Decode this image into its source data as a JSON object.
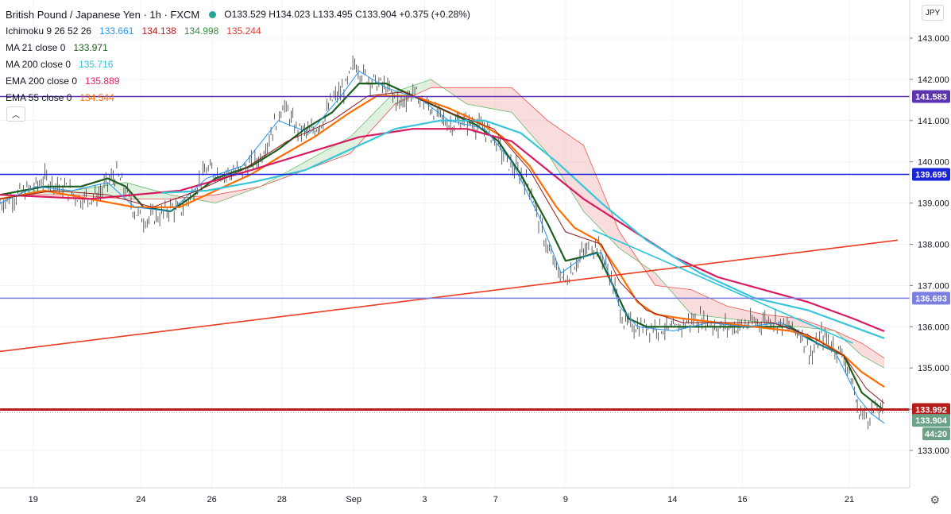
{
  "legend": {
    "symbol": "British Pound / Japanese Yen · 1h · FXCM",
    "ohlc": "O133.529 H134.023 L133.495 C133.904 +0.375 (+0.28%)",
    "rows": [
      {
        "name": "Ichimoku 9 26 52 26",
        "values": [
          {
            "v": "133.661",
            "color": "#2196f3"
          },
          {
            "v": "134.138",
            "color": "#b71c1c"
          },
          {
            "v": "134.998",
            "color": "#388e3c"
          },
          {
            "v": "135.244",
            "color": "#e53935"
          }
        ]
      },
      {
        "name": "MA 21 close 0",
        "values": [
          {
            "v": "133.971",
            "color": "#1b5e20"
          }
        ]
      },
      {
        "name": "MA 200 close 0",
        "values": [
          {
            "v": "135.716",
            "color": "#26c6da"
          }
        ]
      },
      {
        "name": "EMA 200 close 0",
        "values": [
          {
            "v": "135.889",
            "color": "#e91e63"
          }
        ]
      },
      {
        "name": "EMA 55 close 0",
        "values": [
          {
            "v": "134.544",
            "color": "#ff6d00"
          }
        ]
      }
    ]
  },
  "currency_label": "JPY",
  "collapse_icon": "chevron-up-icon",
  "settings_icon": "gear-icon",
  "colors": {
    "price_line_marker": "#7e57c2",
    "support_blue": "#1a23d6",
    "level_light_blue": "#7b7fe0",
    "trend_red": "#ef3b24",
    "current_red": "#b71c1c",
    "current_price_green": "#6aa187",
    "countdown_green": "#6aa187",
    "ma21": "#1b5e20",
    "ma200": "#39c5d9",
    "ema200": "#d81b60",
    "ema55": "#ff6d00",
    "tenkan": "#2196f3",
    "kijun": "#8d1b1b",
    "cloud_bull": "#a5d6a7",
    "cloud_bear": "#ef9a9a",
    "trendline_cyan": "#26c6da"
  },
  "chart_data": {
    "type": "line",
    "title": "British Pound / Japanese Yen · 1h · FXCM",
    "ylim": [
      132.4,
      143.4
    ],
    "y_ticks": [
      "143.000",
      "142.000",
      "141.000",
      "140.000",
      "139.000",
      "138.000",
      "137.000",
      "136.000",
      "135.000",
      "134.000",
      "133.000"
    ],
    "x_ticks": [
      "19",
      "24",
      "26",
      "28",
      "Sep",
      "3",
      "7",
      "9",
      "14",
      "16",
      "21"
    ],
    "horizontal_levels": [
      {
        "label": "141.583",
        "value": 141.583,
        "color": "#5e35b1"
      },
      {
        "label": "139.695",
        "value": 139.695,
        "color": "#1a23d6"
      },
      {
        "label": "136.693",
        "value": 136.693,
        "color": "#7b7fe0"
      },
      {
        "label": "133.992",
        "value": 133.992,
        "color": "#b71c1c"
      }
    ],
    "current_price": {
      "label": "133.904",
      "value": 133.904
    },
    "countdown": "44:20",
    "trendlines": [
      {
        "name": "",
        "from": [
          0,
          135.4
        ],
        "to": [
          1,
          138.1
        ],
        "color": "#ef3b24"
      },
      {
        "name": "",
        "from": [
          0.66,
          138.35
        ],
        "to": [
          0.95,
          135.6
        ],
        "color": "#26c6da"
      }
    ],
    "price_path": [
      [
        0.0,
        139.0
      ],
      [
        0.02,
        139.2
      ],
      [
        0.04,
        139.4
      ],
      [
        0.05,
        139.6
      ],
      [
        0.07,
        139.4
      ],
      [
        0.09,
        139.1
      ],
      [
        0.11,
        139.2
      ],
      [
        0.12,
        139.5
      ],
      [
        0.13,
        139.7
      ],
      [
        0.14,
        139.3
      ],
      [
        0.15,
        138.8
      ],
      [
        0.16,
        138.6
      ],
      [
        0.18,
        138.7
      ],
      [
        0.19,
        138.9
      ],
      [
        0.2,
        138.8
      ],
      [
        0.21,
        139.1
      ],
      [
        0.23,
        139.8
      ],
      [
        0.25,
        139.7
      ],
      [
        0.27,
        139.8
      ],
      [
        0.29,
        140.1
      ],
      [
        0.3,
        140.6
      ],
      [
        0.315,
        141.4
      ],
      [
        0.33,
        140.8
      ],
      [
        0.345,
        140.7
      ],
      [
        0.36,
        141.0
      ],
      [
        0.37,
        141.5
      ],
      [
        0.385,
        141.8
      ],
      [
        0.395,
        142.4
      ],
      [
        0.405,
        142.1
      ],
      [
        0.42,
        141.9
      ],
      [
        0.43,
        141.8
      ],
      [
        0.445,
        141.4
      ],
      [
        0.46,
        141.7
      ],
      [
        0.47,
        141.5
      ],
      [
        0.485,
        141.2
      ],
      [
        0.5,
        140.9
      ],
      [
        0.515,
        141.0
      ],
      [
        0.53,
        140.9
      ],
      [
        0.545,
        140.7
      ],
      [
        0.555,
        140.4
      ],
      [
        0.565,
        140.0
      ],
      [
        0.575,
        139.8
      ],
      [
        0.59,
        139.4
      ],
      [
        0.6,
        138.6
      ],
      [
        0.61,
        137.9
      ],
      [
        0.62,
        137.4
      ],
      [
        0.63,
        137.1
      ],
      [
        0.64,
        137.5
      ],
      [
        0.65,
        137.8
      ],
      [
        0.665,
        138.0
      ],
      [
        0.675,
        137.5
      ],
      [
        0.685,
        136.9
      ],
      [
        0.695,
        136.1
      ],
      [
        0.71,
        136.0
      ],
      [
        0.72,
        136.0
      ],
      [
        0.735,
        136.0
      ],
      [
        0.75,
        135.9
      ],
      [
        0.765,
        136.1
      ],
      [
        0.78,
        136.2
      ],
      [
        0.8,
        136.0
      ],
      [
        0.82,
        136.0
      ],
      [
        0.84,
        136.1
      ],
      [
        0.86,
        136.2
      ],
      [
        0.875,
        136.0
      ],
      [
        0.89,
        135.9
      ],
      [
        0.905,
        135.3
      ],
      [
        0.915,
        135.8
      ],
      [
        0.93,
        135.5
      ],
      [
        0.94,
        135.3
      ],
      [
        0.95,
        134.6
      ],
      [
        0.955,
        134.0
      ],
      [
        0.965,
        133.8
      ],
      [
        0.975,
        134.0
      ],
      [
        0.985,
        133.9
      ]
    ],
    "series": [
      {
        "name": "MA 21 close 0",
        "color": "#1b5e20",
        "points": [
          [
            0,
            139.2
          ],
          [
            0.05,
            139.4
          ],
          [
            0.09,
            139.4
          ],
          [
            0.12,
            139.6
          ],
          [
            0.14,
            139.4
          ],
          [
            0.16,
            138.9
          ],
          [
            0.19,
            138.8
          ],
          [
            0.21,
            139.1
          ],
          [
            0.24,
            139.6
          ],
          [
            0.28,
            139.9
          ],
          [
            0.31,
            140.3
          ],
          [
            0.34,
            140.8
          ],
          [
            0.37,
            141.2
          ],
          [
            0.4,
            141.9
          ],
          [
            0.43,
            141.9
          ],
          [
            0.46,
            141.6
          ],
          [
            0.5,
            141.2
          ],
          [
            0.53,
            140.9
          ],
          [
            0.555,
            140.5
          ],
          [
            0.58,
            139.7
          ],
          [
            0.61,
            138.5
          ],
          [
            0.63,
            137.6
          ],
          [
            0.65,
            137.7
          ],
          [
            0.665,
            137.8
          ],
          [
            0.685,
            136.9
          ],
          [
            0.7,
            136.2
          ],
          [
            0.72,
            136.0
          ],
          [
            0.76,
            136.0
          ],
          [
            0.8,
            136.0
          ],
          [
            0.84,
            136.0
          ],
          [
            0.88,
            136.0
          ],
          [
            0.91,
            135.6
          ],
          [
            0.94,
            135.3
          ],
          [
            0.96,
            134.4
          ],
          [
            0.985,
            133.97
          ]
        ]
      },
      {
        "name": "EMA 55 close 0",
        "color": "#ff6d00",
        "points": [
          [
            0,
            139.1
          ],
          [
            0.05,
            139.3
          ],
          [
            0.1,
            139.1
          ],
          [
            0.15,
            138.9
          ],
          [
            0.2,
            138.9
          ],
          [
            0.24,
            139.3
          ],
          [
            0.28,
            139.7
          ],
          [
            0.31,
            140.1
          ],
          [
            0.35,
            140.6
          ],
          [
            0.39,
            141.2
          ],
          [
            0.42,
            141.6
          ],
          [
            0.46,
            141.6
          ],
          [
            0.5,
            141.3
          ],
          [
            0.53,
            141.0
          ],
          [
            0.56,
            140.6
          ],
          [
            0.59,
            139.9
          ],
          [
            0.62,
            138.9
          ],
          [
            0.64,
            138.4
          ],
          [
            0.665,
            138.1
          ],
          [
            0.69,
            137.3
          ],
          [
            0.71,
            136.6
          ],
          [
            0.73,
            136.3
          ],
          [
            0.76,
            136.2
          ],
          [
            0.8,
            136.1
          ],
          [
            0.84,
            136.0
          ],
          [
            0.88,
            135.9
          ],
          [
            0.91,
            135.7
          ],
          [
            0.94,
            135.3
          ],
          [
            0.96,
            134.9
          ],
          [
            0.985,
            134.54
          ]
        ]
      },
      {
        "name": "EMA 200 close 0",
        "color": "#d81b60",
        "points": [
          [
            0,
            139.2
          ],
          [
            0.1,
            139.1
          ],
          [
            0.2,
            139.3
          ],
          [
            0.28,
            139.8
          ],
          [
            0.34,
            140.2
          ],
          [
            0.4,
            140.6
          ],
          [
            0.46,
            140.8
          ],
          [
            0.52,
            140.8
          ],
          [
            0.57,
            140.5
          ],
          [
            0.61,
            139.8
          ],
          [
            0.65,
            139.1
          ],
          [
            0.7,
            138.4
          ],
          [
            0.75,
            137.7
          ],
          [
            0.8,
            137.2
          ],
          [
            0.85,
            136.9
          ],
          [
            0.9,
            136.6
          ],
          [
            0.95,
            136.2
          ],
          [
            0.985,
            135.89
          ]
        ]
      },
      {
        "name": "MA 200 close 0",
        "color": "#39c5d9",
        "points": [
          [
            0.18,
            139.25
          ],
          [
            0.23,
            139.3
          ],
          [
            0.28,
            139.5
          ],
          [
            0.34,
            139.8
          ],
          [
            0.39,
            140.3
          ],
          [
            0.44,
            140.8
          ],
          [
            0.49,
            141.0
          ],
          [
            0.54,
            141.0
          ],
          [
            0.58,
            140.7
          ],
          [
            0.62,
            140.0
          ],
          [
            0.67,
            139.0
          ],
          [
            0.72,
            138.1
          ],
          [
            0.78,
            137.3
          ],
          [
            0.84,
            136.7
          ],
          [
            0.9,
            136.4
          ],
          [
            0.95,
            136.0
          ],
          [
            0.985,
            135.72
          ]
        ]
      },
      {
        "name": "Ichimoku Tenkan",
        "color": "#2196f3",
        "points": [
          [
            0,
            139.0
          ],
          [
            0.04,
            139.4
          ],
          [
            0.08,
            139.3
          ],
          [
            0.12,
            139.5
          ],
          [
            0.15,
            138.9
          ],
          [
            0.19,
            138.8
          ],
          [
            0.23,
            139.6
          ],
          [
            0.27,
            139.9
          ],
          [
            0.31,
            141.0
          ],
          [
            0.345,
            140.7
          ],
          [
            0.38,
            141.6
          ],
          [
            0.4,
            142.2
          ],
          [
            0.43,
            141.8
          ],
          [
            0.47,
            141.5
          ],
          [
            0.5,
            141.0
          ],
          [
            0.54,
            140.8
          ],
          [
            0.57,
            140.0
          ],
          [
            0.6,
            138.7
          ],
          [
            0.625,
            137.3
          ],
          [
            0.65,
            137.7
          ],
          [
            0.67,
            137.8
          ],
          [
            0.69,
            136.5
          ],
          [
            0.71,
            136.0
          ],
          [
            0.75,
            135.9
          ],
          [
            0.79,
            136.1
          ],
          [
            0.83,
            136.0
          ],
          [
            0.87,
            136.1
          ],
          [
            0.9,
            135.7
          ],
          [
            0.93,
            135.4
          ],
          [
            0.955,
            134.3
          ],
          [
            0.97,
            133.9
          ],
          [
            0.985,
            133.66
          ]
        ]
      },
      {
        "name": "Ichimoku Kijun",
        "color": "#8d1b1b",
        "points": [
          [
            0,
            139.1
          ],
          [
            0.06,
            139.3
          ],
          [
            0.12,
            139.2
          ],
          [
            0.17,
            138.9
          ],
          [
            0.22,
            139.3
          ],
          [
            0.27,
            139.8
          ],
          [
            0.32,
            140.5
          ],
          [
            0.37,
            141.0
          ],
          [
            0.41,
            141.6
          ],
          [
            0.45,
            141.7
          ],
          [
            0.5,
            141.2
          ],
          [
            0.55,
            140.8
          ],
          [
            0.59,
            139.8
          ],
          [
            0.63,
            138.3
          ],
          [
            0.67,
            138.0
          ],
          [
            0.69,
            137.1
          ],
          [
            0.72,
            136.4
          ],
          [
            0.76,
            136.1
          ],
          [
            0.81,
            136.1
          ],
          [
            0.86,
            136.1
          ],
          [
            0.9,
            135.8
          ],
          [
            0.94,
            135.3
          ],
          [
            0.965,
            134.5
          ],
          [
            0.985,
            134.14
          ]
        ]
      }
    ],
    "cloud": {
      "span_a": [
        [
          0.02,
          139.3
        ],
        [
          0.08,
          139.3
        ],
        [
          0.14,
          139.5
        ],
        [
          0.19,
          139.2
        ],
        [
          0.24,
          139.0
        ],
        [
          0.29,
          139.4
        ],
        [
          0.34,
          140.0
        ],
        [
          0.39,
          140.6
        ],
        [
          0.44,
          141.7
        ],
        [
          0.48,
          142.0
        ],
        [
          0.52,
          141.4
        ],
        [
          0.57,
          141.2
        ],
        [
          0.61,
          140.2
        ],
        [
          0.65,
          138.8
        ],
        [
          0.69,
          137.9
        ],
        [
          0.73,
          137.3
        ],
        [
          0.77,
          136.3
        ],
        [
          0.81,
          136.2
        ],
        [
          0.85,
          136.1
        ],
        [
          0.89,
          136.0
        ],
        [
          0.93,
          135.9
        ],
        [
          0.96,
          135.3
        ],
        [
          0.985,
          135.0
        ]
      ],
      "span_b": [
        [
          0.02,
          139.2
        ],
        [
          0.08,
          139.2
        ],
        [
          0.14,
          139.1
        ],
        [
          0.19,
          139.1
        ],
        [
          0.24,
          139.2
        ],
        [
          0.29,
          139.4
        ],
        [
          0.34,
          139.8
        ],
        [
          0.39,
          140.2
        ],
        [
          0.44,
          141.4
        ],
        [
          0.48,
          141.8
        ],
        [
          0.52,
          141.8
        ],
        [
          0.57,
          141.8
        ],
        [
          0.61,
          141.0
        ],
        [
          0.65,
          140.4
        ],
        [
          0.69,
          138.3
        ],
        [
          0.73,
          137.0
        ],
        [
          0.77,
          136.9
        ],
        [
          0.81,
          136.5
        ],
        [
          0.85,
          136.3
        ],
        [
          0.89,
          136.2
        ],
        [
          0.93,
          135.9
        ],
        [
          0.96,
          135.6
        ],
        [
          0.985,
          135.24
        ]
      ]
    }
  }
}
